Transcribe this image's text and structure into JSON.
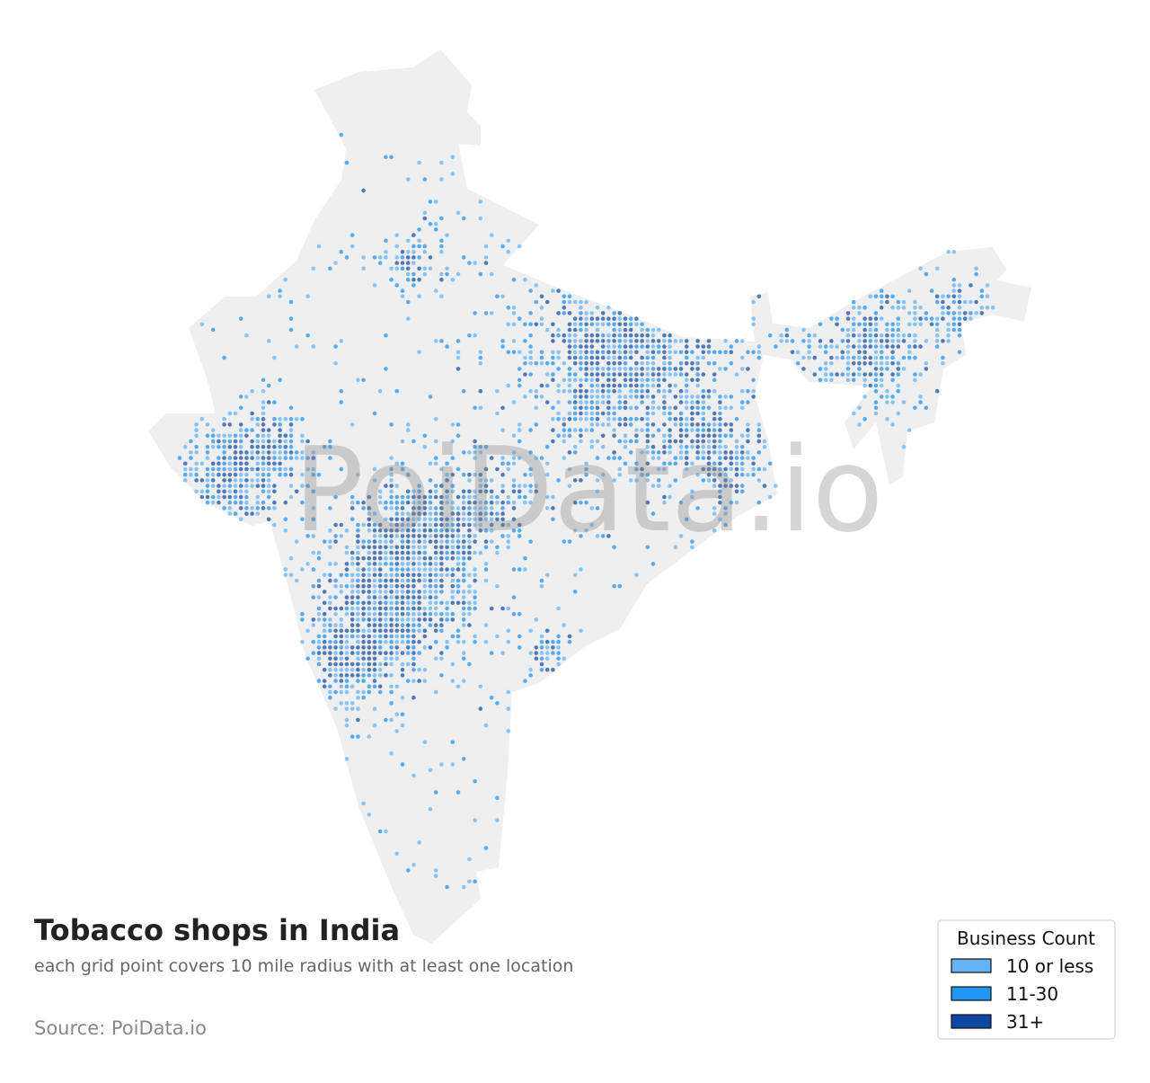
{
  "map": {
    "title": "Tobacco shops in India",
    "subtitle": "each grid point covers 10 mile radius with at least one location",
    "source": "Source: PoiData.io",
    "watermark": "PoiData.io",
    "legend": {
      "title": "Business Count",
      "items": [
        {
          "label": "10 or less",
          "color": "#64b5f6"
        },
        {
          "label": "11-30",
          "color": "#2196f3"
        },
        {
          "label": "31+",
          "color": "#0d47a1"
        }
      ]
    }
  }
}
